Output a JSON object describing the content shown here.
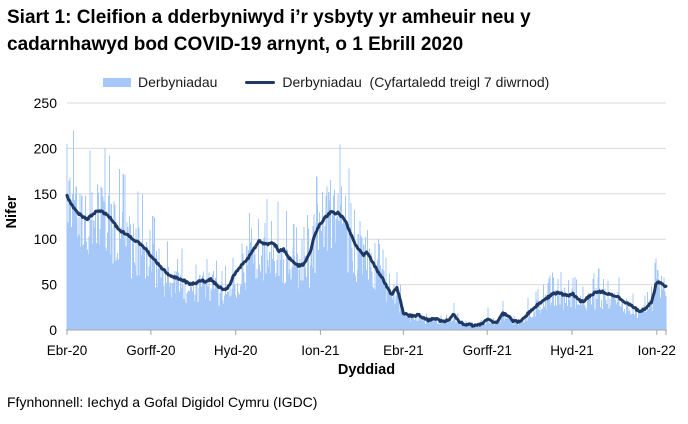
{
  "title": {
    "lines": [
      "Siart 1: Cleifion a dderbyniwyd i’r ysbyty yr amheuir neu y",
      "cadarnhawyd bod COVID-19 arnynt, o 1 Ebrill 2020"
    ]
  },
  "legend": {
    "items": [
      {
        "label": "Derbyniadau",
        "marker": "bar-swatch",
        "color": "#A6C8F8"
      },
      {
        "label": "Derbyniadau  (Cyfartaledd treigl 7 diwrnod)",
        "marker": "line-swatch",
        "color": "#1F3864"
      }
    ]
  },
  "source": {
    "text": "Ffynhonnell: Iechyd a Gofal Digidol Cymru (IGDC)"
  },
  "chart_data": {
    "type": "bar",
    "subtype": "daily bars with 7-day rolling average line overlay",
    "xlabel": "Dyddiad",
    "ylabel": "Nifer",
    "ylim": [
      0,
      250
    ],
    "yticks": [
      0,
      50,
      100,
      150,
      200,
      250
    ],
    "grid": true,
    "legend_position": "top",
    "x_range_days": [
      0,
      650
    ],
    "x_start_date_label": "1 Ebrill 2020",
    "x_ticks": [
      {
        "day": 0,
        "label": "Ebr-20"
      },
      {
        "day": 91,
        "label": "Gorff-20"
      },
      {
        "day": 183,
        "label": "Hyd-20"
      },
      {
        "day": 275,
        "label": "Ion-21"
      },
      {
        "day": 365,
        "label": "Ebr-21"
      },
      {
        "day": 456,
        "label": "Gorff-21"
      },
      {
        "day": 548,
        "label": "Hyd-21"
      },
      {
        "day": 640,
        "label": "Ion-22"
      }
    ],
    "colors": {
      "bars": "#A6C8F8",
      "line": "#1F3864",
      "gridline": "#D9D9D9",
      "axis": "#A6A6A6",
      "text": "#000000"
    },
    "series": [
      {
        "name": "Derbyniadau",
        "type": "bar",
        "color": "#A6C8F8",
        "spike_points_day_value": [
          [
            0,
            205
          ],
          [
            3,
            168
          ],
          [
            6,
            150
          ],
          [
            10,
            158
          ],
          [
            14,
            150
          ],
          [
            20,
            148
          ],
          [
            27,
            152
          ],
          [
            33,
            160
          ],
          [
            37,
            158
          ],
          [
            45,
            148
          ],
          [
            52,
            138
          ],
          [
            60,
            130
          ],
          [
            68,
            125
          ],
          [
            90,
            110
          ],
          [
            100,
            90
          ],
          [
            120,
            78
          ],
          [
            140,
            72
          ],
          [
            152,
            78
          ],
          [
            168,
            65
          ],
          [
            180,
            80
          ],
          [
            190,
            95
          ],
          [
            200,
            112
          ],
          [
            208,
            122
          ],
          [
            215,
            118
          ],
          [
            222,
            120
          ],
          [
            255,
            100
          ],
          [
            262,
            112
          ],
          [
            268,
            128
          ],
          [
            272,
            138
          ],
          [
            277,
            152
          ],
          [
            282,
            158
          ],
          [
            286,
            165
          ],
          [
            290,
            155
          ],
          [
            294,
            150
          ],
          [
            298,
            158
          ],
          [
            302,
            148
          ],
          [
            308,
            140
          ],
          [
            312,
            132
          ],
          [
            318,
            120
          ],
          [
            326,
            110
          ],
          [
            334,
            96
          ],
          [
            350,
            62
          ],
          [
            358,
            64
          ],
          [
            420,
            30
          ],
          [
            457,
            25
          ],
          [
            473,
            32
          ],
          [
            500,
            35
          ],
          [
            511,
            45
          ],
          [
            517,
            50
          ],
          [
            522,
            52
          ],
          [
            528,
            58
          ],
          [
            533,
            56
          ],
          [
            544,
            55
          ],
          [
            549,
            57
          ],
          [
            560,
            48
          ],
          [
            571,
            56
          ],
          [
            576,
            58
          ],
          [
            582,
            56
          ],
          [
            587,
            54
          ],
          [
            614,
            40
          ],
          [
            630,
            42
          ],
          [
            634,
            48
          ],
          [
            638,
            74
          ],
          [
            641,
            66
          ],
          [
            645,
            60
          ],
          [
            648,
            58
          ]
        ],
        "noise_fraction_range": [
          0.55,
          1.5
        ]
      },
      {
        "name": "Derbyniadau  (Cyfartaledd treigl 7 diwrnod)",
        "type": "line",
        "color": "#1F3864",
        "points_day_value": [
          [
            0,
            148
          ],
          [
            4,
            140
          ],
          [
            8,
            134
          ],
          [
            13,
            128
          ],
          [
            18,
            124
          ],
          [
            22,
            122
          ],
          [
            26,
            126
          ],
          [
            31,
            130
          ],
          [
            36,
            131
          ],
          [
            42,
            128
          ],
          [
            48,
            122
          ],
          [
            53,
            115
          ],
          [
            58,
            109
          ],
          [
            64,
            106
          ],
          [
            69,
            102
          ],
          [
            75,
            98
          ],
          [
            80,
            94
          ],
          [
            86,
            89
          ],
          [
            91,
            81
          ],
          [
            96,
            76
          ],
          [
            102,
            69
          ],
          [
            107,
            64
          ],
          [
            113,
            59
          ],
          [
            118,
            58
          ],
          [
            124,
            56
          ],
          [
            129,
            53
          ],
          [
            134,
            50
          ],
          [
            140,
            52
          ],
          [
            145,
            55
          ],
          [
            151,
            53
          ],
          [
            156,
            56
          ],
          [
            162,
            50
          ],
          [
            167,
            46
          ],
          [
            172,
            44
          ],
          [
            176,
            49
          ],
          [
            180,
            58
          ],
          [
            185,
            66
          ],
          [
            190,
            72
          ],
          [
            196,
            78
          ],
          [
            202,
            88
          ],
          [
            208,
            98
          ],
          [
            212,
            96
          ],
          [
            217,
            94
          ],
          [
            222,
            97
          ],
          [
            227,
            92
          ],
          [
            230,
            87
          ],
          [
            235,
            89
          ],
          [
            240,
            80
          ],
          [
            245,
            76
          ],
          [
            251,
            71
          ],
          [
            256,
            72
          ],
          [
            260,
            78
          ],
          [
            264,
            86
          ],
          [
            268,
            102
          ],
          [
            273,
            114
          ],
          [
            278,
            121
          ],
          [
            283,
            127
          ],
          [
            288,
            131
          ],
          [
            291,
            128
          ],
          [
            294,
            130
          ],
          [
            297,
            126
          ],
          [
            300,
            124
          ],
          [
            306,
            111
          ],
          [
            311,
            98
          ],
          [
            316,
            89
          ],
          [
            322,
            83
          ],
          [
            325,
            86
          ],
          [
            329,
            80
          ],
          [
            333,
            72
          ],
          [
            338,
            63
          ],
          [
            343,
            56
          ],
          [
            349,
            44
          ],
          [
            352,
            39
          ],
          [
            358,
            47
          ],
          [
            365,
            19
          ],
          [
            371,
            16
          ],
          [
            376,
            15
          ],
          [
            381,
            17
          ],
          [
            387,
            13
          ],
          [
            392,
            11
          ],
          [
            398,
            13
          ],
          [
            403,
            11
          ],
          [
            408,
            9
          ],
          [
            414,
            11
          ],
          [
            419,
            17
          ],
          [
            425,
            10
          ],
          [
            430,
            6
          ],
          [
            436,
            6
          ],
          [
            441,
            5
          ],
          [
            446,
            5
          ],
          [
            452,
            8
          ],
          [
            457,
            12
          ],
          [
            463,
            8
          ],
          [
            468,
            10
          ],
          [
            473,
            18
          ],
          [
            479,
            16
          ],
          [
            484,
            10
          ],
          [
            490,
            9
          ],
          [
            495,
            12
          ],
          [
            500,
            18
          ],
          [
            506,
            24
          ],
          [
            511,
            28
          ],
          [
            517,
            33
          ],
          [
            522,
            36
          ],
          [
            528,
            40
          ],
          [
            533,
            41
          ],
          [
            538,
            39
          ],
          [
            544,
            38
          ],
          [
            549,
            40
          ],
          [
            555,
            33
          ],
          [
            560,
            31
          ],
          [
            565,
            36
          ],
          [
            571,
            40
          ],
          [
            576,
            42
          ],
          [
            582,
            42
          ],
          [
            587,
            40
          ],
          [
            592,
            38
          ],
          [
            598,
            37
          ],
          [
            603,
            32
          ],
          [
            609,
            29
          ],
          [
            614,
            26
          ],
          [
            620,
            21
          ],
          [
            625,
            22
          ],
          [
            630,
            26
          ],
          [
            634,
            30
          ],
          [
            636,
            37
          ],
          [
            638,
            44
          ],
          [
            639,
            50
          ],
          [
            641,
            53
          ],
          [
            644,
            52
          ],
          [
            646,
            50
          ],
          [
            648,
            48
          ],
          [
            650,
            48
          ]
        ]
      }
    ]
  }
}
